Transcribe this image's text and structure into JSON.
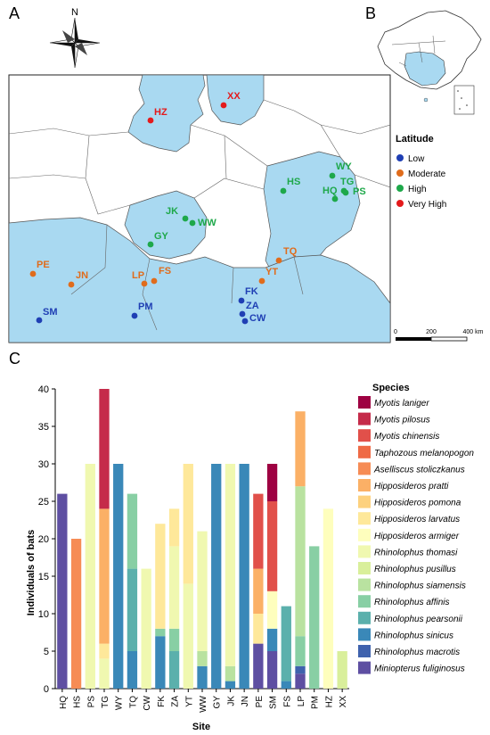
{
  "panels": {
    "a": "A",
    "b": "B",
    "c": "C"
  },
  "compass": {
    "north": "N"
  },
  "map": {
    "sites": [
      {
        "code": "XX",
        "group": "very_high"
      },
      {
        "code": "HZ",
        "group": "very_high"
      },
      {
        "code": "WY",
        "group": "high"
      },
      {
        "code": "HS",
        "group": "high"
      },
      {
        "code": "TG",
        "group": "high"
      },
      {
        "code": "HQ",
        "group": "high"
      },
      {
        "code": "PS",
        "group": "high"
      },
      {
        "code": "JK",
        "group": "high"
      },
      {
        "code": "WW",
        "group": "high"
      },
      {
        "code": "GY",
        "group": "high"
      },
      {
        "code": "TQ",
        "group": "moderate"
      },
      {
        "code": "YT",
        "group": "moderate"
      },
      {
        "code": "PE",
        "group": "moderate"
      },
      {
        "code": "JN",
        "group": "moderate"
      },
      {
        "code": "LP",
        "group": "moderate"
      },
      {
        "code": "FS",
        "group": "moderate"
      },
      {
        "code": "FK",
        "group": "low"
      },
      {
        "code": "ZA",
        "group": "low"
      },
      {
        "code": "CW",
        "group": "low"
      },
      {
        "code": "SM",
        "group": "low"
      },
      {
        "code": "PM",
        "group": "low"
      }
    ],
    "scale": {
      "labels": [
        "0",
        "200",
        "400 km"
      ]
    }
  },
  "latitude_legend": {
    "title": "Latitude",
    "items": [
      {
        "label": "Low",
        "color": "#1f3fb4"
      },
      {
        "label": "Moderate",
        "color": "#e06c1c"
      },
      {
        "label": "High",
        "color": "#1ea84a"
      },
      {
        "label": "Very High",
        "color": "#e41a1c"
      }
    ]
  },
  "chart_data": {
    "type": "bar",
    "stacked": true,
    "xlabel": "Site",
    "ylabel": "Individuals of bats",
    "ylim": [
      0,
      40
    ],
    "yticks": [
      0,
      5,
      10,
      15,
      20,
      25,
      30,
      35,
      40
    ],
    "categories": [
      "HQ",
      "HS",
      "PS",
      "TG",
      "WY",
      "TQ",
      "CW",
      "FK",
      "ZA",
      "YT",
      "WW",
      "GY",
      "JK",
      "JN",
      "PE",
      "SM",
      "FS",
      "LP",
      "PM",
      "HZ",
      "XX"
    ],
    "legend_title": "Species",
    "series": [
      {
        "name": "Miniopterus fuliginosus",
        "color": "#5e4fa2",
        "values": [
          26,
          0,
          0,
          0,
          0,
          0,
          0,
          0,
          0,
          0,
          0,
          0,
          0,
          0,
          6,
          5,
          0,
          2,
          0,
          0,
          0
        ]
      },
      {
        "name": "Rhinolophus macrotis",
        "color": "#3f62ad",
        "values": [
          0,
          0,
          0,
          0,
          0,
          0,
          0,
          0,
          0,
          0,
          0,
          0,
          0,
          0,
          0,
          0,
          0,
          1,
          0,
          0,
          0
        ]
      },
      {
        "name": "Rhinolophus sinicus",
        "color": "#3a88b8",
        "values": [
          0,
          0,
          0,
          0,
          30,
          5,
          0,
          7,
          0,
          0,
          3,
          30,
          1,
          30,
          0,
          3,
          1,
          0,
          0,
          0,
          0
        ]
      },
      {
        "name": "Rhinolophus pearsonii",
        "color": "#5bb0ac",
        "values": [
          0,
          0,
          0,
          0,
          0,
          11,
          0,
          0,
          5,
          0,
          0,
          0,
          0,
          0,
          0,
          0,
          10,
          0,
          0,
          0,
          0
        ]
      },
      {
        "name": "Rhinolophus affinis",
        "color": "#88cfa4",
        "values": [
          0,
          0,
          0,
          0,
          0,
          10,
          0,
          1,
          3,
          0,
          0,
          0,
          0,
          0,
          0,
          0,
          0,
          4,
          19,
          0,
          0
        ]
      },
      {
        "name": "Rhinolophus siamensis",
        "color": "#b9e2a0",
        "values": [
          0,
          0,
          0,
          0,
          0,
          0,
          0,
          0,
          0,
          0,
          2,
          0,
          2,
          0,
          0,
          0,
          0,
          20,
          0,
          0,
          0
        ]
      },
      {
        "name": "Rhinolophus pusillus",
        "color": "#d9ef9b",
        "values": [
          0,
          0,
          0,
          0,
          0,
          0,
          0,
          0,
          0,
          0,
          0,
          0,
          0,
          0,
          0,
          0,
          0,
          0,
          0,
          0,
          5
        ]
      },
      {
        "name": "Rhinolophus thomasi",
        "color": "#f0f8b0",
        "values": [
          0,
          0,
          30,
          4,
          0,
          0,
          16,
          0,
          11,
          14,
          16,
          0,
          27,
          0,
          0,
          0,
          0,
          0,
          0,
          0,
          0
        ]
      },
      {
        "name": "Hipposideros armiger",
        "color": "#fefebd",
        "values": [
          0,
          0,
          0,
          0,
          0,
          0,
          0,
          0,
          0,
          0,
          0,
          0,
          0,
          0,
          0,
          5,
          0,
          0,
          0,
          24,
          0
        ]
      },
      {
        "name": "Hipposideros larvatus",
        "color": "#fee89a",
        "values": [
          0,
          0,
          0,
          2,
          0,
          0,
          0,
          14,
          5,
          16,
          0,
          0,
          0,
          0,
          4,
          0,
          0,
          0,
          0,
          0,
          0
        ]
      },
      {
        "name": "Hipposideros pomona",
        "color": "#fdd17e",
        "values": [
          0,
          0,
          0,
          0,
          0,
          0,
          0,
          0,
          0,
          0,
          0,
          0,
          0,
          0,
          0,
          0,
          0,
          0,
          0,
          0,
          0
        ]
      },
      {
        "name": "Hipposideros pratti",
        "color": "#fbb066",
        "values": [
          0,
          0,
          0,
          18,
          0,
          0,
          0,
          0,
          0,
          0,
          0,
          0,
          0,
          0,
          6,
          0,
          0,
          10,
          0,
          0,
          0
        ]
      },
      {
        "name": "Aselliscus stoliczkanus",
        "color": "#f68c55",
        "values": [
          0,
          20,
          0,
          0,
          0,
          0,
          0,
          0,
          0,
          0,
          0,
          0,
          0,
          0,
          0,
          0,
          0,
          0,
          0,
          0,
          0
        ]
      },
      {
        "name": "Taphozous melanopogon",
        "color": "#ef6a45",
        "values": [
          0,
          0,
          0,
          0,
          0,
          0,
          0,
          0,
          0,
          0,
          0,
          0,
          0,
          0,
          0,
          0,
          0,
          0,
          0,
          0,
          0
        ]
      },
      {
        "name": "Myotis chinensis",
        "color": "#e1504a",
        "values": [
          0,
          0,
          0,
          0,
          0,
          0,
          0,
          0,
          0,
          0,
          0,
          0,
          0,
          0,
          10,
          12,
          0,
          0,
          0,
          0,
          0
        ]
      },
      {
        "name": "Myotis pilosus",
        "color": "#c52b4a",
        "values": [
          0,
          0,
          0,
          16,
          0,
          0,
          0,
          0,
          0,
          0,
          0,
          0,
          0,
          0,
          0,
          0,
          0,
          0,
          0,
          0,
          0
        ]
      },
      {
        "name": "Myotis laniger",
        "color": "#9e0142",
        "values": [
          0,
          0,
          0,
          0,
          0,
          0,
          0,
          0,
          0,
          0,
          0,
          0,
          0,
          0,
          0,
          5,
          0,
          0,
          0,
          0,
          0
        ]
      }
    ]
  }
}
